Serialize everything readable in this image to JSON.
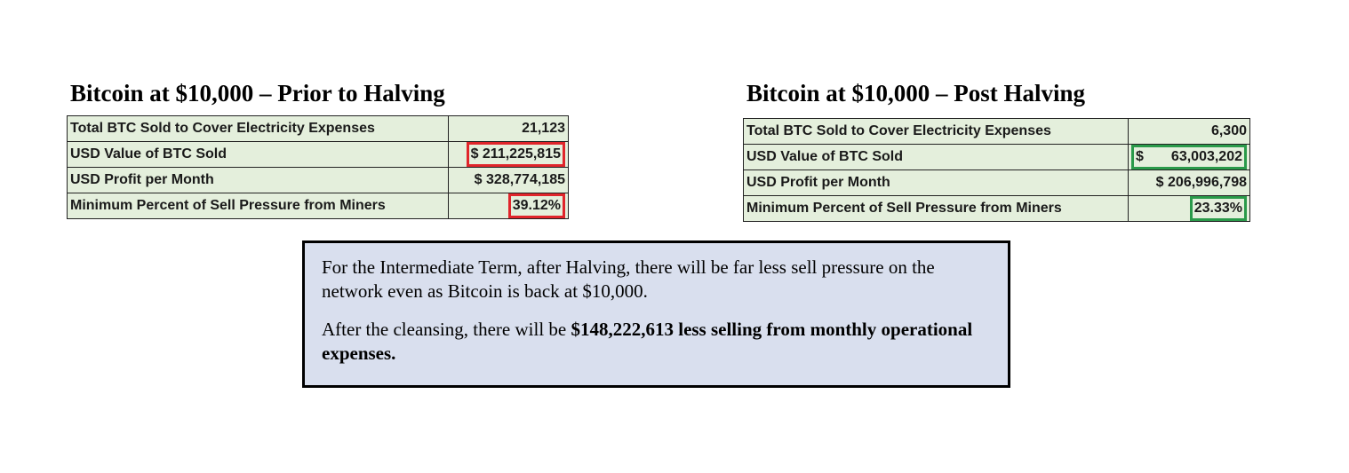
{
  "left": {
    "title": "Bitcoin at $10,000 – Prior to Halving",
    "rows": [
      {
        "label": "Total BTC Sold to Cover Electricity Expenses",
        "value": "21,123"
      },
      {
        "label": "USD Value of BTC Sold",
        "value": "$ 211,225,815",
        "highlight": "#e0252b"
      },
      {
        "label": "USD Profit per Month",
        "value": "$ 328,774,185"
      },
      {
        "label": "Minimum Percent of Sell Pressure from Miners",
        "value": "39.12%",
        "highlight": "#e0252b"
      }
    ]
  },
  "right": {
    "title": "Bitcoin at $10,000 – Post Halving",
    "rows": [
      {
        "label": "Total BTC Sold to Cover Electricity Expenses",
        "value": "6,300"
      },
      {
        "label": "USD Value of BTC Sold",
        "currency": "$",
        "amount": "63,003,202",
        "highlight": "#2a9a4a"
      },
      {
        "label": "USD Profit per Month",
        "value": "$ 206,996,798"
      },
      {
        "label": "Minimum Percent of Sell Pressure from Miners",
        "value": "23.33%",
        "highlight": "#2a9a4a"
      }
    ]
  },
  "note": {
    "paragraph1": "For the Intermediate Term, after Halving, there will be far less sell pressure on the network even as Bitcoin is back at $10,000.",
    "paragraph2_plain": "After the cleansing, there will be ",
    "paragraph2_bold": "$148,222,613 less selling from monthly operational expenses."
  }
}
